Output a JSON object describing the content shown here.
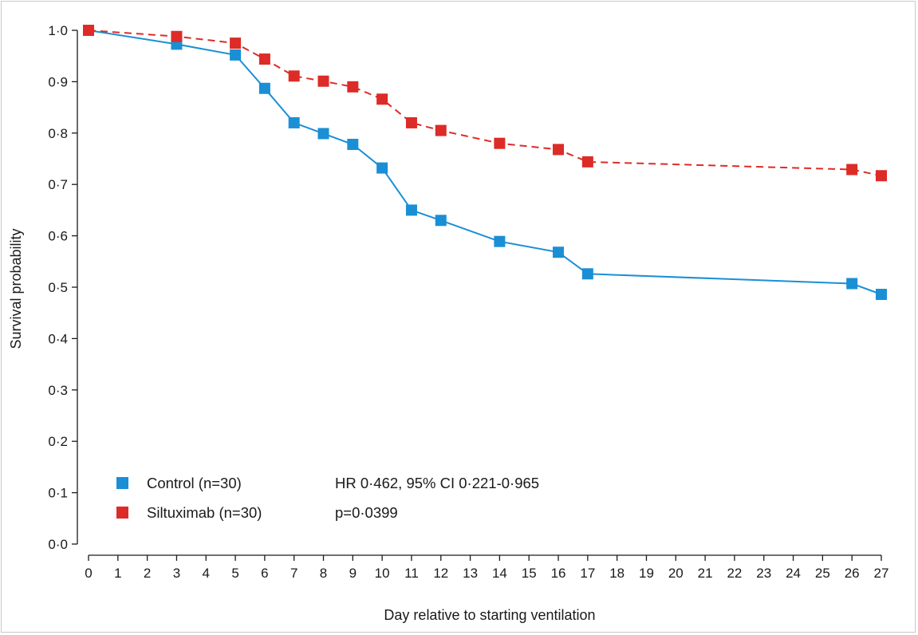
{
  "chart_data": {
    "type": "line",
    "title": "",
    "xlabel": "Day relative to starting ventilation",
    "ylabel": "Survival probability",
    "x_ticks": [
      "0",
      "1",
      "2",
      "3",
      "4",
      "5",
      "6",
      "7",
      "8",
      "9",
      "10",
      "11",
      "12",
      "13",
      "14",
      "15",
      "16",
      "17",
      "18",
      "19",
      "20",
      "21",
      "22",
      "23",
      "24",
      "25",
      "26",
      "27"
    ],
    "y_ticks": [
      "0·0",
      "0·1",
      "0·2",
      "0·3",
      "0·4",
      "0·5",
      "0·6",
      "0·7",
      "0·8",
      "0·9",
      "1·0"
    ],
    "xlim": [
      0,
      27
    ],
    "ylim": [
      0,
      1.0
    ],
    "grid": false,
    "legend_position": "bottom-left",
    "series": [
      {
        "name": "Control (n=30)",
        "color": "#1a8fd6",
        "line_style": "solid",
        "marker": "square",
        "points": [
          [
            0,
            1.0
          ],
          [
            3,
            0.973
          ],
          [
            5,
            0.952
          ],
          [
            6,
            0.887
          ],
          [
            7,
            0.82
          ],
          [
            8,
            0.799
          ],
          [
            9,
            0.778
          ],
          [
            10,
            0.732
          ],
          [
            11,
            0.65
          ],
          [
            12,
            0.63
          ],
          [
            14,
            0.589
          ],
          [
            16,
            0.568
          ],
          [
            17,
            0.526
          ],
          [
            26,
            0.507
          ],
          [
            27,
            0.486
          ]
        ]
      },
      {
        "name": "Siltuximab (n=30)",
        "color": "#dd2b27",
        "line_style": "dashed",
        "marker": "square",
        "points": [
          [
            0,
            1.0
          ],
          [
            3,
            0.988
          ],
          [
            5,
            0.975
          ],
          [
            6,
            0.944
          ],
          [
            7,
            0.911
          ],
          [
            8,
            0.901
          ],
          [
            9,
            0.89
          ],
          [
            10,
            0.866
          ],
          [
            11,
            0.82
          ],
          [
            12,
            0.805
          ],
          [
            14,
            0.78
          ],
          [
            16,
            0.768
          ],
          [
            17,
            0.744
          ],
          [
            26,
            0.729
          ],
          [
            27,
            0.717
          ]
        ]
      }
    ],
    "annotations": {
      "hr_text": "HR 0·462, 95% CI 0·221-0·965",
      "p_text": "p=0·0399"
    }
  }
}
